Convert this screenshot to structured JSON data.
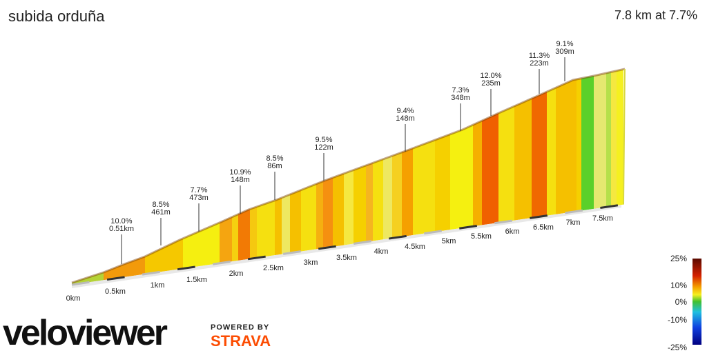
{
  "header": {
    "title": "subida orduña",
    "summary": "7.8 km at 7.7%"
  },
  "annotations": [
    {
      "grade": "10.0%",
      "length": "0.51km"
    },
    {
      "grade": "8.5%",
      "length": "461m"
    },
    {
      "grade": "7.7%",
      "length": "473m"
    },
    {
      "grade": "10.9%",
      "length": "148m"
    },
    {
      "grade": "8.5%",
      "length": "86m"
    },
    {
      "grade": "9.5%",
      "length": "122m"
    },
    {
      "grade": "9.4%",
      "length": "148m"
    },
    {
      "grade": "7.3%",
      "length": "348m"
    },
    {
      "grade": "12.0%",
      "length": "235m"
    },
    {
      "grade": "11.3%",
      "length": "223m"
    },
    {
      "grade": "9.1%",
      "length": "309m"
    }
  ],
  "distance_labels": [
    "0km",
    "0.5km",
    "1km",
    "1.5km",
    "2km",
    "2.5km",
    "3km",
    "3.5km",
    "4km",
    "4.5km",
    "5km",
    "5.5km",
    "6km",
    "6.5km",
    "7km",
    "7.5km"
  ],
  "legend": {
    "labels": [
      "25%",
      "10%",
      "0%",
      "-10%",
      "-25%"
    ]
  },
  "branding": {
    "logo": "veloviewer",
    "powered_by": "POWERED BY",
    "partner": "STRAVA"
  }
}
